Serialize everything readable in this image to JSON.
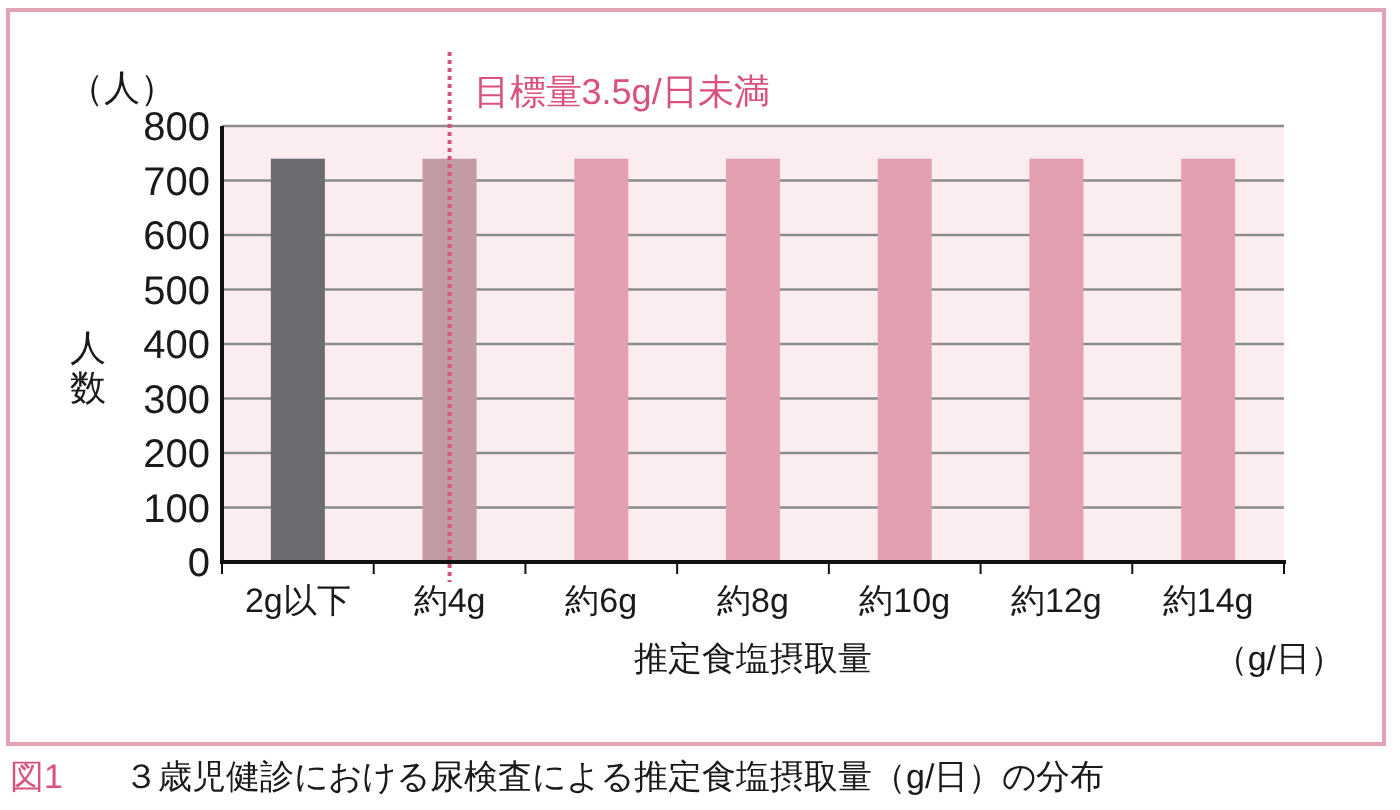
{
  "chart_data": {
    "type": "bar",
    "categories": [
      "2g以下",
      "約4g",
      "約6g",
      "約8g",
      "約10g",
      "約12g",
      "約14g"
    ],
    "values": [
      740,
      740,
      740,
      740,
      740,
      740,
      740
    ],
    "colors": [
      "#6b6c70",
      "#c29ba5",
      "#e2a0b0",
      "#e2a0b0",
      "#e2a0b0",
      "#e2a0b0",
      "#e2a0b0"
    ],
    "ylim": [
      0,
      800
    ],
    "yticks": [
      0,
      100,
      200,
      300,
      400,
      500,
      600,
      700,
      800
    ],
    "grid": "y",
    "xlabel": "推定食塩摂取量",
    "ylabel": "人数",
    "ref_lines": [
      {
        "axis": "x",
        "value": "約4g",
        "label": "目標量3.5g/日未満",
        "color": "#d9517f",
        "line_style": "dotted"
      }
    ],
    "annotations": [
      "（人）",
      "（g/日）",
      "図1",
      "３歳児健診における尿検査による推定食塩摂取量（g/日）の分布"
    ]
  }
}
